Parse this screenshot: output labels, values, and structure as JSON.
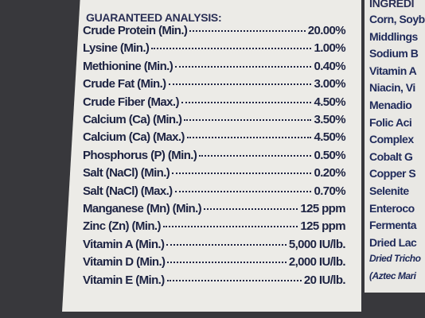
{
  "analysis": {
    "title": "GUARANTEED ANALYSIS:",
    "rows": [
      {
        "label": "Crude Protein (Min.)",
        "value": "20.00%"
      },
      {
        "label": "Lysine (Min.)",
        "value": "1.00%"
      },
      {
        "label": "Methionine (Min.)",
        "value": "0.40%"
      },
      {
        "label": "Crude Fat (Min.)",
        "value": "3.00%"
      },
      {
        "label": "Crude Fiber (Max.)",
        "value": "4.50%"
      },
      {
        "label": "Calcium (Ca) (Min.)",
        "value": "3.50%"
      },
      {
        "label": "Calcium (Ca) (Max.)",
        "value": "4.50%"
      },
      {
        "label": "Phosphorus (P) (Min.)",
        "value": "0.50%"
      },
      {
        "label": "Salt (NaCl) (Min.)",
        "value": "0.20%"
      },
      {
        "label": "Salt (NaCl) (Max.)",
        "value": "0.70%"
      },
      {
        "label": "Manganese (Mn) (Min.)",
        "value": "125 ppm"
      },
      {
        "label": "Zinc (Zn) (Min.)",
        "value": "125 ppm"
      },
      {
        "label": "Vitamin A (Min.)",
        "value": "5,000 IU/lb."
      },
      {
        "label": "Vitamin D (Min.)",
        "value": "2,000 IU/lb."
      },
      {
        "label": "Vitamin E (Min.)",
        "value": "20 IU/lb."
      }
    ]
  },
  "ingredients": {
    "title": "INGREDI",
    "lines": [
      "Corn, Soyb",
      "Middlings",
      "Sodium B",
      "Vitamin A",
      "Niacin, Vi",
      "Menadio",
      "Folic Aci",
      "Complex",
      "Cobalt G",
      "Copper S",
      "Selenite",
      "Enteroco",
      "Fermenta",
      "Dried Lac",
      "Dried Tricho",
      "(Aztec Mari"
    ]
  }
}
